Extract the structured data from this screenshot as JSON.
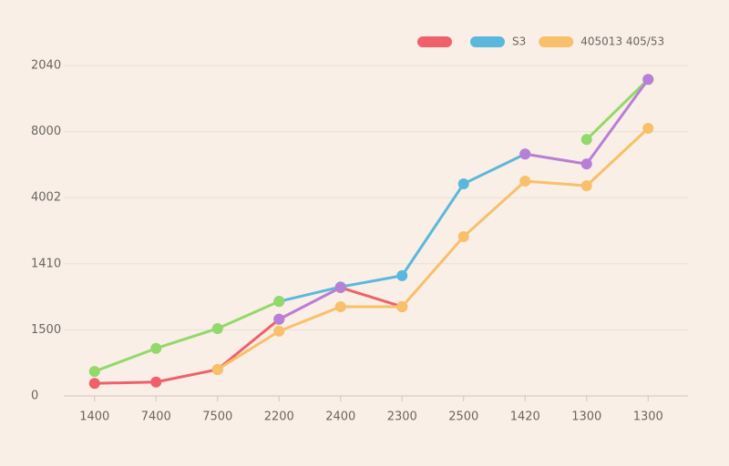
{
  "chart_data": {
    "type": "line",
    "categories": [
      "1400",
      "7400",
      "7500",
      "2200",
      "2400",
      "2300",
      "2500",
      "1420",
      "1300",
      "1300"
    ],
    "ylim": [
      0,
      5
    ],
    "yticks": [
      0,
      {
        "value": 1,
        "label": "1500"
      },
      {
        "value": 2,
        "label": "1410"
      },
      {
        "value": 3,
        "label": "4002"
      },
      {
        "value": 4,
        "label": "8000"
      },
      {
        "value": 5,
        "label": "2040"
      }
    ],
    "grid": true,
    "legend": "top-right",
    "series": [
      {
        "color": "#f0606a",
        "values": [
          0.19,
          0.21,
          0.4,
          1.16,
          1.64,
          1.35,
          null,
          null,
          null,
          null
        ]
      },
      {
        "name": "S3",
        "color": "#5bb8dc",
        "values": [
          null,
          null,
          null,
          1.43,
          1.65,
          1.82,
          3.21,
          3.66,
          null,
          null
        ]
      },
      {
        "name": "405013 405/53",
        "color": "#f8c06a",
        "values": [
          null,
          null,
          0.4,
          0.98,
          1.35,
          1.35,
          2.41,
          3.25,
          3.18,
          4.05
        ]
      },
      {
        "color": "#93d86a",
        "values": [
          0.37,
          0.72,
          1.02,
          1.43,
          null,
          null,
          null,
          null,
          3.88,
          4.79
        ]
      },
      {
        "color": "#b77fd6",
        "values": [
          null,
          null,
          null,
          1.16,
          1.64,
          null,
          null,
          3.66,
          3.51,
          4.79
        ]
      }
    ]
  }
}
